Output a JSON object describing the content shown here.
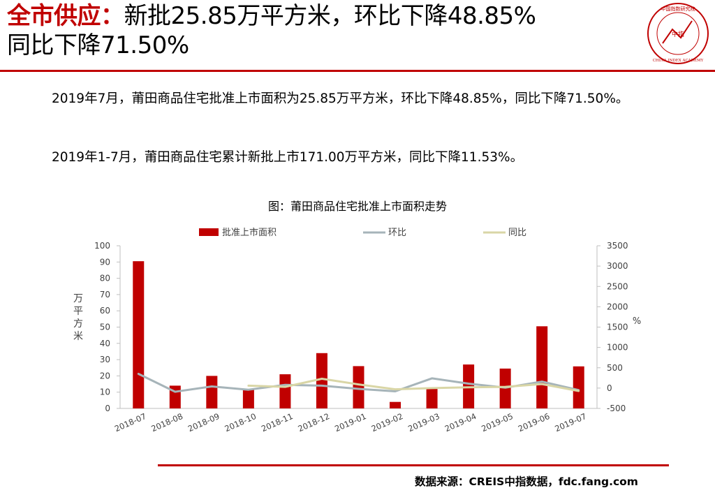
{
  "header": {
    "keyword": "全市供应：",
    "summary": "新批25.85万平方米，环比下降48.85%",
    "summary2": "同比下降71.50%"
  },
  "logo": {
    "center_text": "中指",
    "ring_text_top": "中国指数研究院",
    "ring_text_bottom": "CHINA INDEX ACADEMY"
  },
  "paragraphs": {
    "p1": "2019年7月，莆田商品住宅批准上市面积为25.85万平方米，环比下降48.85%，同比下降71.50%。",
    "p2": "2019年1-7月，莆田商品住宅累计新批上市171.00万平方米，同比下降11.53%。"
  },
  "colors": {
    "accent": "#c00000",
    "bar": "#c00000",
    "mom_line": "#a6b4b9",
    "yoy_line": "#d9d6a6"
  },
  "chart_data": {
    "type": "bar",
    "title": "图：莆田商品住宅批准上市面积走势",
    "categories": [
      "2018-07",
      "2018-08",
      "2018-09",
      "2018-10",
      "2018-11",
      "2018-12",
      "2019-01",
      "2019-02",
      "2019-03",
      "2019-04",
      "2019-05",
      "2019-06",
      "2019-07"
    ],
    "series": [
      {
        "name": "批准上市面积",
        "type": "bar",
        "axis": "left",
        "values": [
          90.5,
          14,
          20,
          11.5,
          21,
          34,
          26,
          4,
          12.5,
          27,
          24.5,
          50.5,
          25.85
        ]
      },
      {
        "name": "环比",
        "type": "line",
        "axis": "right",
        "values": [
          350,
          -90,
          40,
          -40,
          80,
          60,
          -20,
          -80,
          240,
          110,
          10,
          160,
          -48.85
        ]
      },
      {
        "name": "同比",
        "type": "line",
        "axis": "right",
        "values": [
          null,
          null,
          null,
          60,
          30,
          230,
          90,
          -30,
          0,
          20,
          30,
          100,
          -71.5
        ]
      }
    ],
    "ylabel_left": "万平方米",
    "ylabel_right": "%",
    "ylim_left": [
      0,
      100
    ],
    "yticks_left": [
      "0",
      "10",
      "20",
      "30",
      "40",
      "50",
      "60",
      "70",
      "80",
      "90",
      "100"
    ],
    "ylim_right": [
      -500,
      3500
    ],
    "yticks_right": [
      "-500",
      "0",
      "500",
      "1000",
      "1500",
      "2000",
      "2500",
      "3000",
      "3500"
    ],
    "legend_position": "top",
    "grid": false
  },
  "footer": {
    "source": "数据来源：CREIS中指数据，fdc.fang.com"
  }
}
